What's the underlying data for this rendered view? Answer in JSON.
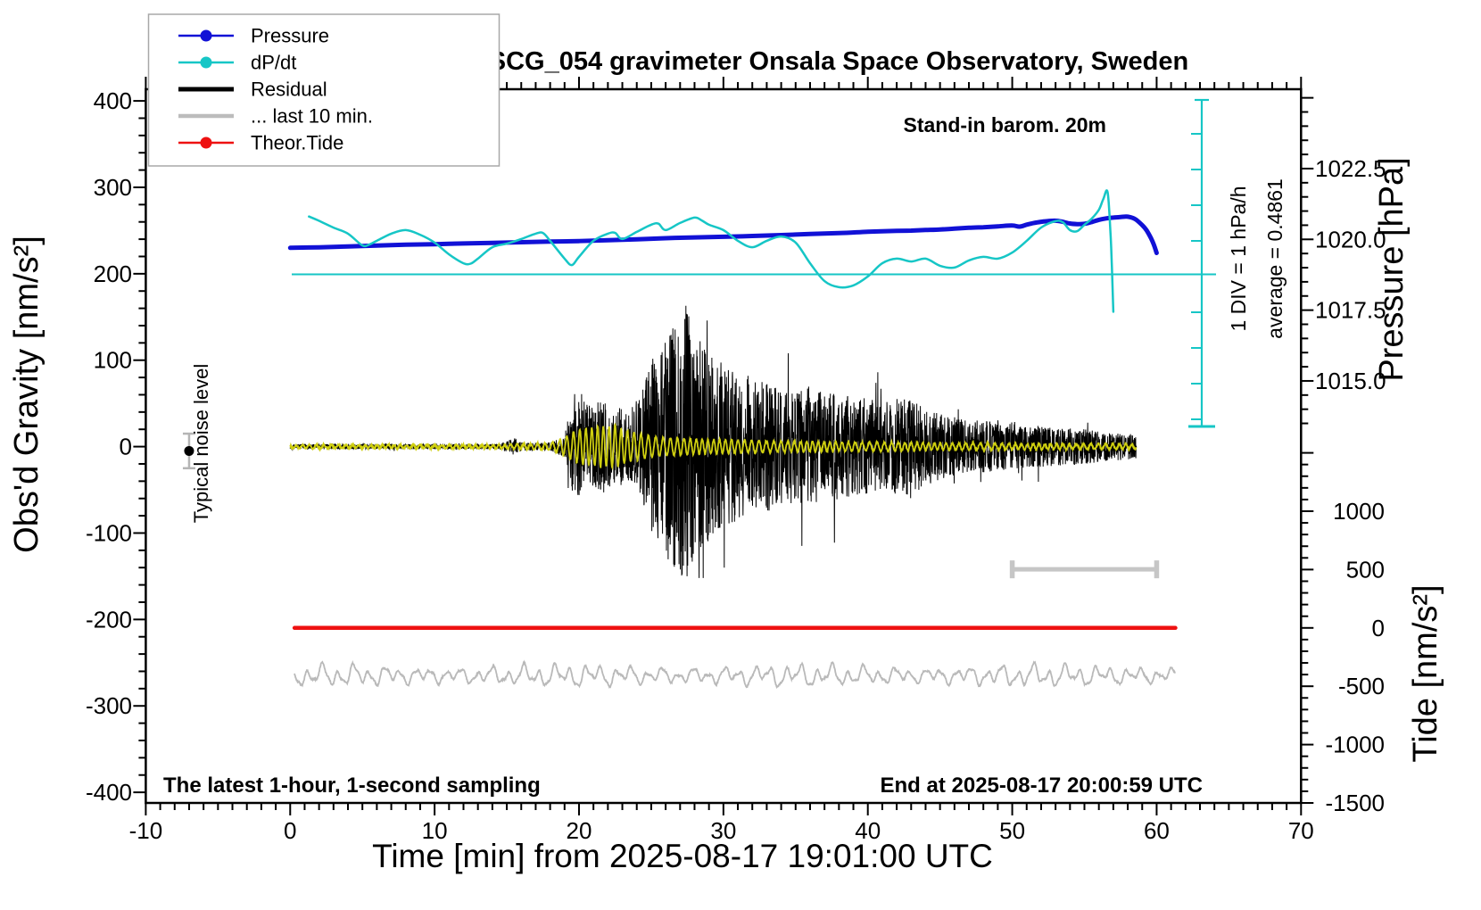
{
  "title": "SCG_054 gravimeter Onsala Space Observatory, Sweden",
  "annotations": {
    "stand_in_barometer": "Stand-in barom. 20m",
    "sampling_note": "The latest 1-hour, 1-second sampling",
    "end_note": "End at 2025-08-17 20:00:59 UTC",
    "div_scale": "1 DIV = 1 hPa/h",
    "average": "average = 0.4861",
    "noise_marker": "Typical noise level"
  },
  "legend": {
    "items": [
      {
        "label": "Pressure",
        "color": "#1111d6"
      },
      {
        "label": "dP/dt",
        "color": "#16c6c6"
      },
      {
        "label": "Residual",
        "color": "#000000"
      },
      {
        "label": "... last 10 min.",
        "color": "#bcbcbc"
      },
      {
        "label": "Theor.Tide",
        "color": "#ee1111"
      }
    ]
  },
  "chart_data": {
    "type": "line",
    "title": "SCG_054 gravimeter Onsala Space Observatory, Sweden",
    "xlabel": "Time [min] from 2025-08-17 19:01:00 UTC",
    "x_axis": {
      "range": [
        -10,
        70
      ],
      "major_ticks": [
        -10,
        0,
        10,
        20,
        30,
        40,
        50,
        60,
        70
      ],
      "minor_step": 1
    },
    "y_gravity": {
      "label": "Obs'd Gravity [nm/s²]",
      "range": [
        -413,
        413
      ],
      "major_ticks": [
        400,
        300,
        200,
        100,
        0,
        -100,
        -200,
        -300,
        -400
      ],
      "minor_step": 20
    },
    "y_pressure": {
      "label": "Pressure [hPa]",
      "major_tick_labels": [
        "1022.5",
        "1020.0",
        "1017.5",
        "1015.0"
      ],
      "minor_step": 0.5
    },
    "y_tide": {
      "label": "Tide [nm/s²]",
      "major_tick_labels": [
        "1000",
        "500",
        "0",
        "-500",
        "-1000",
        "-1500"
      ],
      "minor_step": 100
    },
    "grid": false,
    "legend_position": "top-left",
    "series": {
      "pressure_hpa": {
        "name": "Pressure",
        "color": "#1111d6",
        "units": "hPa",
        "points": [
          [
            0,
            1019.7
          ],
          [
            2,
            1019.72
          ],
          [
            4,
            1019.75
          ],
          [
            6,
            1019.78
          ],
          [
            8,
            1019.81
          ],
          [
            10,
            1019.83
          ],
          [
            12,
            1019.855
          ],
          [
            14,
            1019.875
          ],
          [
            16,
            1019.9
          ],
          [
            18,
            1019.92
          ],
          [
            20,
            1019.94
          ],
          [
            22,
            1019.97
          ],
          [
            24,
            1020.0
          ],
          [
            26,
            1020.04
          ],
          [
            28,
            1020.07
          ],
          [
            30,
            1020.09
          ],
          [
            32,
            1020.12
          ],
          [
            34,
            1020.15
          ],
          [
            36,
            1020.19
          ],
          [
            38,
            1020.22
          ],
          [
            40,
            1020.27
          ],
          [
            42,
            1020.3
          ],
          [
            43,
            1020.31
          ],
          [
            44,
            1020.33
          ],
          [
            45,
            1020.35
          ],
          [
            46,
            1020.38
          ],
          [
            47,
            1020.41
          ],
          [
            48,
            1020.43
          ],
          [
            49,
            1020.46
          ],
          [
            50,
            1020.49
          ],
          [
            50.5,
            1020.45
          ],
          [
            51,
            1020.52
          ],
          [
            51.5,
            1020.58
          ],
          [
            52,
            1020.62
          ],
          [
            52.5,
            1020.65
          ],
          [
            53,
            1020.66
          ],
          [
            53.5,
            1020.62
          ],
          [
            54,
            1020.56
          ],
          [
            54.5,
            1020.54
          ],
          [
            55,
            1020.55
          ],
          [
            55.5,
            1020.61
          ],
          [
            56,
            1020.69
          ],
          [
            56.5,
            1020.74
          ],
          [
            57,
            1020.77
          ],
          [
            57.5,
            1020.79
          ],
          [
            58,
            1020.8
          ],
          [
            58.5,
            1020.72
          ],
          [
            59,
            1020.5
          ],
          [
            59.3,
            1020.32
          ],
          [
            59.6,
            1020.05
          ],
          [
            59.8,
            1019.82
          ],
          [
            60,
            1019.52
          ]
        ]
      },
      "dpdt_hpa_per_h": {
        "name": "dP/dt",
        "color": "#16c6c6",
        "units": "hPa/h",
        "average": 0.4861,
        "zero_line": 0,
        "points": [
          [
            1.3,
            1.62
          ],
          [
            2,
            1.5
          ],
          [
            3,
            1.31
          ],
          [
            4,
            1.14
          ],
          [
            5,
            0.81
          ],
          [
            5.5,
            0.84
          ],
          [
            6,
            0.94
          ],
          [
            7,
            1.14
          ],
          [
            8,
            1.24
          ],
          [
            9,
            1.11
          ],
          [
            10,
            0.89
          ],
          [
            11,
            0.56
          ],
          [
            12,
            0.31
          ],
          [
            12.5,
            0.3
          ],
          [
            13,
            0.44
          ],
          [
            14,
            0.76
          ],
          [
            15,
            0.86
          ],
          [
            16,
            0.99
          ],
          [
            17,
            1.14
          ],
          [
            17.5,
            1.16
          ],
          [
            18,
            0.94
          ],
          [
            19,
            0.44
          ],
          [
            19.5,
            0.26
          ],
          [
            20,
            0.49
          ],
          [
            21,
            0.94
          ],
          [
            22,
            1.14
          ],
          [
            22.5,
            1.16
          ],
          [
            23,
            0.99
          ],
          [
            24,
            1.19
          ],
          [
            25,
            1.39
          ],
          [
            25.5,
            1.42
          ],
          [
            26,
            1.24
          ],
          [
            27,
            1.44
          ],
          [
            28,
            1.59
          ],
          [
            28.5,
            1.51
          ],
          [
            29,
            1.39
          ],
          [
            30,
            1.24
          ],
          [
            31,
            0.94
          ],
          [
            32,
            0.76
          ],
          [
            33,
            0.94
          ],
          [
            34,
            1.06
          ],
          [
            35,
            0.89
          ],
          [
            36,
            0.31
          ],
          [
            37,
            -0.19
          ],
          [
            38,
            -0.36
          ],
          [
            39,
            -0.31
          ],
          [
            40,
            -0.06
          ],
          [
            41,
            0.31
          ],
          [
            42,
            0.44
          ],
          [
            43,
            0.36
          ],
          [
            44,
            0.44
          ],
          [
            45,
            0.24
          ],
          [
            46,
            0.19
          ],
          [
            47,
            0.39
          ],
          [
            48,
            0.49
          ],
          [
            49,
            0.44
          ],
          [
            50,
            0.61
          ],
          [
            51,
            0.94
          ],
          [
            52,
            1.31
          ],
          [
            53,
            1.49
          ],
          [
            53.5,
            1.46
          ],
          [
            54,
            1.24
          ],
          [
            54.5,
            1.21
          ],
          [
            55,
            1.39
          ],
          [
            55.5,
            1.56
          ],
          [
            56,
            1.81
          ],
          [
            56.3,
            2.1
          ],
          [
            56.6,
            2.31
          ],
          [
            56.8,
            1.2
          ],
          [
            56.9,
            0.2
          ],
          [
            57,
            -1.05
          ]
        ]
      },
      "residual": {
        "name": "Residual",
        "color": "#000000",
        "units": "nm/s2",
        "t_end": 58.6,
        "envelope": [
          [
            0,
            3
          ],
          [
            10,
            3
          ],
          [
            14.5,
            3
          ],
          [
            15,
            7
          ],
          [
            15.5,
            10
          ],
          [
            16,
            5
          ],
          [
            17,
            4
          ],
          [
            18,
            5
          ],
          [
            19,
            12
          ],
          [
            19.5,
            55
          ],
          [
            20,
            70
          ],
          [
            20.5,
            50
          ],
          [
            21,
            45
          ],
          [
            21.5,
            58
          ],
          [
            22,
            50
          ],
          [
            22.5,
            42
          ],
          [
            23,
            48
          ],
          [
            23.5,
            40
          ],
          [
            24,
            55
          ],
          [
            24.5,
            75
          ],
          [
            25,
            100
          ],
          [
            25.5,
            115
          ],
          [
            26,
            130
          ],
          [
            26.5,
            140
          ],
          [
            27,
            150
          ],
          [
            27.5,
            160
          ],
          [
            28,
            135
          ],
          [
            28.5,
            118
          ],
          [
            29,
            108
          ],
          [
            30,
            95
          ],
          [
            31,
            85
          ],
          [
            32,
            82
          ],
          [
            33,
            75
          ],
          [
            34,
            70
          ],
          [
            35,
            65
          ],
          [
            36,
            72
          ],
          [
            37,
            60
          ],
          [
            38,
            64
          ],
          [
            39,
            55
          ],
          [
            40,
            58
          ],
          [
            41,
            50
          ],
          [
            42,
            55
          ],
          [
            43,
            58
          ],
          [
            44,
            45
          ],
          [
            45,
            38
          ],
          [
            46,
            34
          ],
          [
            47,
            32
          ],
          [
            48,
            30
          ],
          [
            49,
            28
          ],
          [
            50,
            26
          ],
          [
            51,
            24
          ],
          [
            52,
            24
          ],
          [
            53,
            22
          ],
          [
            54,
            22
          ],
          [
            55,
            20
          ],
          [
            56,
            18
          ],
          [
            57,
            16
          ],
          [
            58,
            15
          ],
          [
            58.6,
            14
          ]
        ],
        "peak_max": 163,
        "peak_min": -150,
        "peak_time": 27.4
      },
      "residual_lowpass": {
        "name": "Residual low-pass",
        "color": "#cfcf10",
        "units": "nm/s2",
        "t_end": 58.6,
        "period_min": 0.45,
        "envelope": [
          [
            0,
            2
          ],
          [
            15,
            2
          ],
          [
            16,
            3
          ],
          [
            18,
            4
          ],
          [
            19,
            10
          ],
          [
            19.5,
            16
          ],
          [
            20,
            20
          ],
          [
            21,
            22
          ],
          [
            21.5,
            24
          ],
          [
            22,
            22
          ],
          [
            22.5,
            25
          ],
          [
            23,
            20
          ],
          [
            24,
            16
          ],
          [
            25,
            12
          ],
          [
            26,
            10
          ],
          [
            27,
            10
          ],
          [
            28,
            9
          ],
          [
            29,
            8
          ],
          [
            30,
            8
          ],
          [
            32,
            7
          ],
          [
            34,
            6
          ],
          [
            36,
            6
          ],
          [
            38,
            5
          ],
          [
            40,
            5
          ],
          [
            42,
            5
          ],
          [
            44,
            4
          ],
          [
            46,
            4
          ],
          [
            48,
            4
          ],
          [
            50,
            3.5
          ],
          [
            52,
            3.5
          ],
          [
            54,
            3
          ],
          [
            56,
            3
          ],
          [
            58,
            3
          ],
          [
            58.6,
            3
          ]
        ]
      },
      "theor_tide": {
        "name": "Theor.Tide",
        "color": "#ee1111",
        "units": "nm/s2 (tide axis)",
        "t_start": 0.3,
        "t_end": 61.3,
        "value": 0
      },
      "last10_trace": {
        "name": "... last 10 min.",
        "color": "#b9b9b9",
        "center_gravity": -265,
        "t_start": 0.3,
        "t_end": 61.3,
        "components": [
          {
            "amp": 6.5,
            "period": 1.07,
            "phase": 0.9
          },
          {
            "amp": 4.3,
            "period": 2.35,
            "phase": 2.1
          },
          {
            "amp": 2.3,
            "period": 0.52,
            "phase": 0.3
          }
        ],
        "modulation": {
          "amp": 0.22,
          "period": 16.5,
          "phase": 0.6
        }
      },
      "last10_bracket": {
        "t_start": 50,
        "t_end": 60,
        "gravity": -142,
        "color": "#c6c6c6"
      },
      "noise_marker": {
        "t": -7,
        "value": -5,
        "error": 20
      },
      "dpdt_scalebar": {
        "div_hpa_per_h": 1,
        "label": "1 DIV = 1 hPa/h",
        "average_label": "average = 0.4861"
      }
    }
  }
}
